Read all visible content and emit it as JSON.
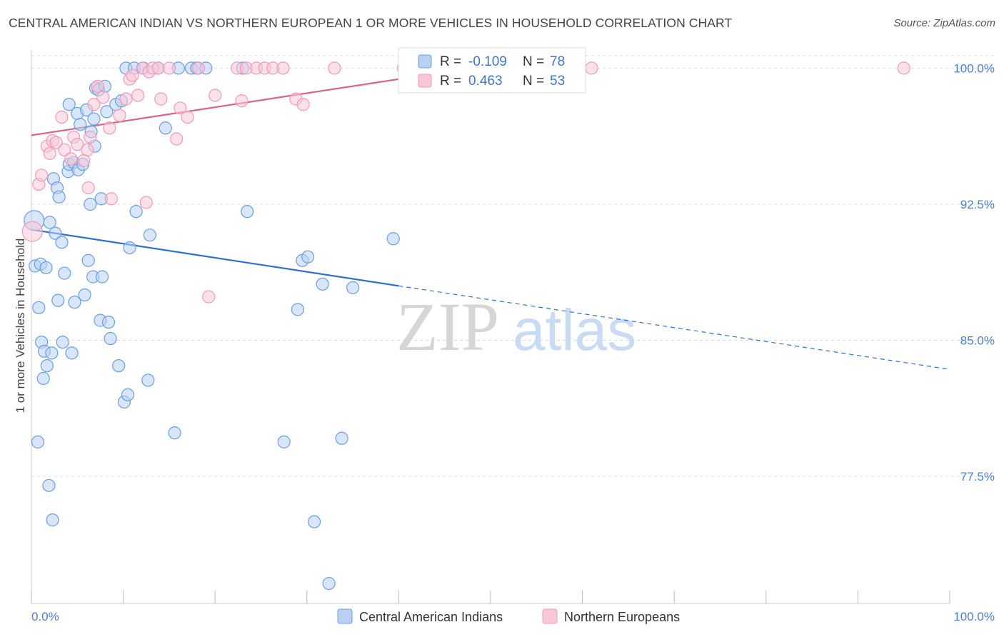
{
  "title": "CENTRAL AMERICAN INDIAN VS NORTHERN EUROPEAN 1 OR MORE VEHICLES IN HOUSEHOLD CORRELATION CHART",
  "source": "Source: ZipAtlas.com",
  "watermark": {
    "zip": "ZIP",
    "atlas": "atlas"
  },
  "colors": {
    "blue": "#6a9fe0",
    "blue_fill": "#b9d0f2",
    "blue_line": "#2f6fcf",
    "pink": "#f09ab7",
    "pink_fill": "#f8c8d8",
    "pink_line": "#e0608c",
    "tick": "#4a7fd0",
    "grid": "#dddddd"
  },
  "legend": {
    "rows": [
      {
        "r_label": "R = ",
        "r_value": "-0.109",
        "n_label": "N = ",
        "n_value": "78"
      },
      {
        "r_label": "R = ",
        "r_value": "0.463",
        "n_label": "N = ",
        "n_value": "53"
      }
    ]
  },
  "chart_data": {
    "type": "scatter",
    "title": "CENTRAL AMERICAN INDIAN VS NORTHERN EUROPEAN 1 OR MORE VEHICLES IN HOUSEHOLD CORRELATION CHART",
    "xlabel": "",
    "ylabel": "1 or more Vehicles in Household",
    "xlim": [
      0,
      100
    ],
    "ylim": [
      70.5,
      101
    ],
    "x_tick_labels": [
      "0.0%",
      "100.0%"
    ],
    "y_ticks": [
      77.5,
      85.0,
      92.5,
      100.0
    ],
    "y_tick_labels": [
      "77.5%",
      "85.0%",
      "92.5%",
      "100.0%"
    ],
    "grid": true,
    "legend_position": "top-center",
    "series": [
      {
        "name": "Central American Indians",
        "color": "#6a9fe0",
        "trend": {
          "x": [
            0,
            40
          ],
          "y": [
            91.1,
            88.0
          ],
          "dashed_to": [
            100,
            83.4
          ]
        },
        "points": [
          [
            0.3,
            91.6
          ],
          [
            0.4,
            89.1
          ],
          [
            0.7,
            79.4
          ],
          [
            0.8,
            86.8
          ],
          [
            1.0,
            89.2
          ],
          [
            1.1,
            84.9
          ],
          [
            1.3,
            82.9
          ],
          [
            1.4,
            84.4
          ],
          [
            1.6,
            89.0
          ],
          [
            1.7,
            83.6
          ],
          [
            1.9,
            77.0
          ],
          [
            2.0,
            91.5
          ],
          [
            2.2,
            84.3
          ],
          [
            2.3,
            75.1
          ],
          [
            2.4,
            93.9
          ],
          [
            2.6,
            90.9
          ],
          [
            2.8,
            93.4
          ],
          [
            2.9,
            87.2
          ],
          [
            3.0,
            92.9
          ],
          [
            3.3,
            90.4
          ],
          [
            3.4,
            84.9
          ],
          [
            3.6,
            88.7
          ],
          [
            4.0,
            94.3
          ],
          [
            4.1,
            94.7
          ],
          [
            4.1,
            98.0
          ],
          [
            4.4,
            84.3
          ],
          [
            4.6,
            94.8
          ],
          [
            4.7,
            87.1
          ],
          [
            5.0,
            97.5
          ],
          [
            5.1,
            94.4
          ],
          [
            5.3,
            96.9
          ],
          [
            5.6,
            94.7
          ],
          [
            5.8,
            87.5
          ],
          [
            6.0,
            97.7
          ],
          [
            6.2,
            89.4
          ],
          [
            6.4,
            92.5
          ],
          [
            6.5,
            96.5
          ],
          [
            6.7,
            88.5
          ],
          [
            6.8,
            97.2
          ],
          [
            6.9,
            95.7
          ],
          [
            7.0,
            98.9
          ],
          [
            7.3,
            98.8
          ],
          [
            7.5,
            86.1
          ],
          [
            7.6,
            92.8
          ],
          [
            7.7,
            88.5
          ],
          [
            8.0,
            99.0
          ],
          [
            8.2,
            97.6
          ],
          [
            8.4,
            86.0
          ],
          [
            8.6,
            85.1
          ],
          [
            9.2,
            98.0
          ],
          [
            9.5,
            83.6
          ],
          [
            9.8,
            98.2
          ],
          [
            10.1,
            81.6
          ],
          [
            10.3,
            100.0
          ],
          [
            10.5,
            82.0
          ],
          [
            10.7,
            90.1
          ],
          [
            11.2,
            100.0
          ],
          [
            11.4,
            92.1
          ],
          [
            12.2,
            100.0
          ],
          [
            12.7,
            82.8
          ],
          [
            12.9,
            90.8
          ],
          [
            13.8,
            100.0
          ],
          [
            14.6,
            96.7
          ],
          [
            15.6,
            79.9
          ],
          [
            16.0,
            100.0
          ],
          [
            17.4,
            100.0
          ],
          [
            18.0,
            100.0
          ],
          [
            19.0,
            100.0
          ],
          [
            23.0,
            100.0
          ],
          [
            23.5,
            92.1
          ],
          [
            27.5,
            79.4
          ],
          [
            29.0,
            86.7
          ],
          [
            29.5,
            89.4
          ],
          [
            30.1,
            89.6
          ],
          [
            30.8,
            75.0
          ],
          [
            31.7,
            88.1
          ],
          [
            32.4,
            71.6
          ],
          [
            33.8,
            79.6
          ],
          [
            35.0,
            87.9
          ],
          [
            39.4,
            90.6
          ]
        ]
      },
      {
        "name": "Northern Europeans",
        "color": "#f09ab7",
        "trend": {
          "x": [
            0,
            53
          ],
          "y": [
            96.3,
            100.4
          ]
        },
        "points": [
          [
            0.1,
            91.0
          ],
          [
            0.8,
            93.6
          ],
          [
            1.1,
            94.1
          ],
          [
            1.7,
            95.7
          ],
          [
            2.0,
            95.3
          ],
          [
            2.3,
            96.0
          ],
          [
            2.7,
            95.9
          ],
          [
            3.3,
            97.3
          ],
          [
            3.6,
            95.5
          ],
          [
            4.3,
            95.0
          ],
          [
            4.6,
            96.2
          ],
          [
            5.0,
            95.8
          ],
          [
            5.7,
            94.9
          ],
          [
            6.1,
            95.5
          ],
          [
            6.2,
            93.4
          ],
          [
            6.4,
            96.2
          ],
          [
            6.8,
            98.0
          ],
          [
            7.2,
            99.0
          ],
          [
            7.8,
            98.4
          ],
          [
            8.5,
            96.7
          ],
          [
            8.7,
            92.8
          ],
          [
            9.6,
            97.4
          ],
          [
            10.3,
            98.3
          ],
          [
            10.7,
            99.4
          ],
          [
            11.0,
            99.6
          ],
          [
            11.6,
            98.5
          ],
          [
            12.1,
            100.0
          ],
          [
            12.5,
            92.6
          ],
          [
            12.8,
            99.8
          ],
          [
            13.2,
            100.0
          ],
          [
            13.8,
            100.0
          ],
          [
            14.1,
            98.3
          ],
          [
            15.0,
            100.0
          ],
          [
            15.8,
            96.1
          ],
          [
            16.2,
            97.8
          ],
          [
            17.0,
            97.3
          ],
          [
            18.2,
            100.0
          ],
          [
            19.3,
            87.4
          ],
          [
            20.0,
            98.5
          ],
          [
            22.4,
            100.0
          ],
          [
            22.9,
            98.2
          ],
          [
            23.4,
            100.0
          ],
          [
            24.5,
            100.0
          ],
          [
            25.4,
            100.0
          ],
          [
            26.3,
            100.0
          ],
          [
            27.4,
            100.0
          ],
          [
            28.8,
            98.3
          ],
          [
            29.6,
            98.0
          ],
          [
            33.0,
            100.0
          ],
          [
            40.5,
            100.0
          ],
          [
            50.0,
            100.0
          ],
          [
            61.0,
            100.0
          ],
          [
            95.0,
            100.0
          ]
        ]
      }
    ]
  }
}
